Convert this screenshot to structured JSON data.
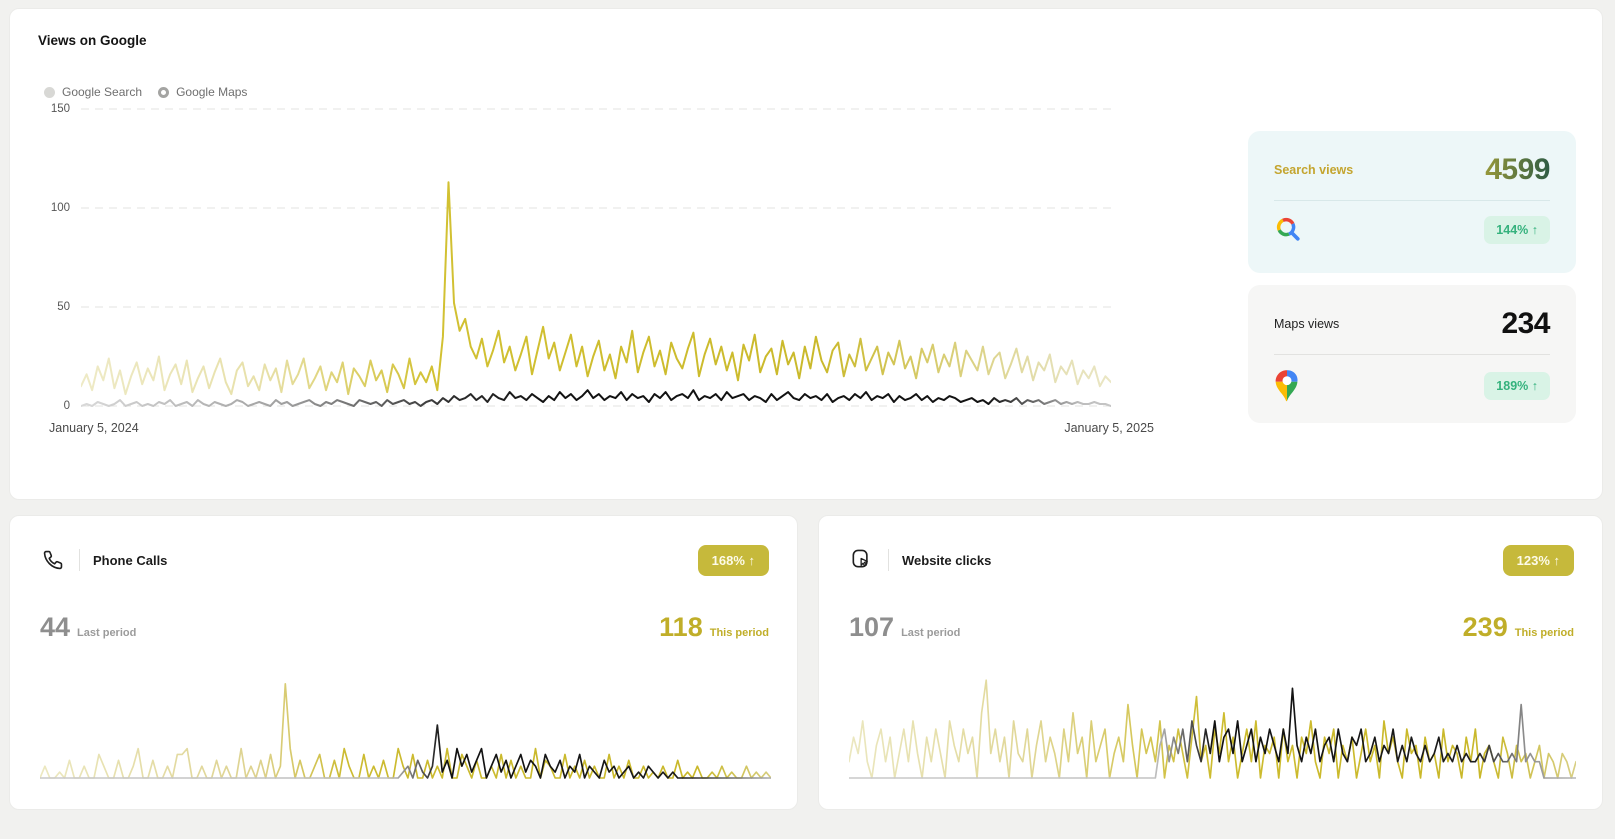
{
  "views": {
    "title": "Views on Google",
    "legend": [
      {
        "label": "Google Search",
        "marker": "filled"
      },
      {
        "label": "Google Maps",
        "marker": "ring"
      }
    ],
    "y_ticks": [
      150,
      100,
      50,
      0
    ],
    "x_start_label": "January 5, 2024",
    "x_end_label": "January 5, 2025"
  },
  "summary": {
    "search": {
      "label": "Search views",
      "value": "4599",
      "change": "144% ↑"
    },
    "maps": {
      "label": "Maps views",
      "value": "234",
      "change": "189% ↑"
    }
  },
  "cards": {
    "phone": {
      "title": "Phone Calls",
      "change": "168% ↑",
      "last_value": "44",
      "last_label": "Last period",
      "this_value": "118",
      "this_label": "This period"
    },
    "clicks": {
      "title": "Website clicks",
      "change": "123% ↑",
      "last_value": "107",
      "last_label": "Last period",
      "this_value": "239",
      "this_label": "This period"
    }
  },
  "colors": {
    "accent_olive": "#c6b93b",
    "accent_olive_text": "#c0ae29",
    "line_yellow": "#cab92b",
    "line_dark": "#121212",
    "green_badge_text": "#35b27d",
    "green_badge_bg": "#d9f3e6",
    "search_tile_bg": "#edf7f8",
    "maps_tile_bg": "#f6f6f5",
    "search_value_gradient": [
      "#97983b",
      "#2e5c44"
    ],
    "google_red": "#EA4335",
    "google_blue": "#4285F4",
    "google_yellow": "#FBBC05",
    "google_green": "#34A853"
  },
  "chart_data": [
    {
      "id": "views-on-google",
      "type": "line",
      "title": "Views on Google",
      "x_range": [
        "January 5, 2024",
        "January 5, 2025"
      ],
      "ylim": [
        0,
        150
      ],
      "y_ticks": [
        150,
        100,
        50,
        0
      ],
      "grid": "dashed-horizontal",
      "legend_position": "top-left",
      "legend": [
        "Google Search",
        "Google Maps"
      ],
      "note": "daily values; line fades pale at period edges, saturated mid-right; Search peak ~113 in late spring",
      "series": [
        {
          "name": "Google Search",
          "values": [
            10,
            16,
            8,
            20,
            13,
            24,
            9,
            18,
            6,
            15,
            22,
            11,
            19,
            13,
            25,
            8,
            16,
            21,
            11,
            23,
            7,
            14,
            20,
            9,
            17,
            24,
            12,
            6,
            18,
            22,
            10,
            15,
            8,
            21,
            13,
            19,
            7,
            23,
            11,
            16,
            24,
            9,
            14,
            20,
            8,
            17,
            12,
            22,
            6,
            19,
            15,
            10,
            23,
            13,
            18,
            7,
            21,
            16,
            9,
            24,
            11,
            17,
            12,
            20,
            8,
            35,
            113,
            52,
            38,
            44,
            30,
            24,
            34,
            20,
            28,
            38,
            22,
            30,
            18,
            26,
            35,
            16,
            28,
            40,
            24,
            32,
            18,
            27,
            36,
            20,
            30,
            15,
            25,
            33,
            18,
            26,
            14,
            30,
            22,
            38,
            17,
            27,
            35,
            20,
            28,
            16,
            32,
            24,
            19,
            29,
            37,
            15,
            26,
            34,
            21,
            30,
            18,
            27,
            13,
            31,
            23,
            36,
            17,
            25,
            29,
            16,
            33,
            21,
            27,
            14,
            30,
            19,
            35,
            23,
            17,
            28,
            32,
            15,
            26,
            20,
            34,
            18,
            24,
            30,
            16,
            27,
            21,
            33,
            19,
            25,
            14,
            29,
            22,
            31,
            17,
            26,
            20,
            32,
            15,
            28,
            23,
            18,
            30,
            16,
            24,
            27,
            14,
            21,
            29,
            17,
            25,
            13,
            22,
            18,
            26,
            12,
            20,
            16,
            23,
            11,
            18,
            14,
            20,
            10,
            15,
            12
          ]
        },
        {
          "name": "Google Maps",
          "values": [
            0,
            1,
            0,
            2,
            1,
            0,
            1,
            3,
            0,
            1,
            2,
            0,
            1,
            0,
            2,
            1,
            3,
            0,
            1,
            2,
            0,
            3,
            1,
            0,
            2,
            1,
            0,
            1,
            3,
            2,
            0,
            1,
            2,
            1,
            0,
            3,
            1,
            2,
            0,
            1,
            2,
            3,
            1,
            0,
            2,
            1,
            3,
            2,
            1,
            0,
            3,
            2,
            1,
            2,
            0,
            3,
            1,
            2,
            3,
            1,
            2,
            0,
            2,
            3,
            1,
            4,
            2,
            5,
            3,
            4,
            6,
            3,
            5,
            2,
            6,
            4,
            3,
            7,
            4,
            5,
            3,
            6,
            4,
            2,
            5,
            3,
            7,
            4,
            6,
            3,
            5,
            8,
            4,
            6,
            3,
            5,
            4,
            7,
            3,
            6,
            4,
            5,
            2,
            6,
            4,
            7,
            3,
            5,
            6,
            4,
            8,
            3,
            5,
            4,
            6,
            3,
            7,
            4,
            5,
            6,
            3,
            5,
            4,
            2,
            6,
            3,
            5,
            7,
            4,
            3,
            6,
            4,
            5,
            3,
            6,
            2,
            4,
            5,
            3,
            6,
            4,
            7,
            3,
            5,
            4,
            6,
            2,
            5,
            3,
            4,
            6,
            3,
            5,
            2,
            4,
            3,
            5,
            4,
            2,
            3,
            4,
            2,
            3,
            1,
            4,
            2,
            3,
            2,
            4,
            1,
            3,
            2,
            3,
            1,
            2,
            3,
            1,
            2,
            1,
            2,
            1,
            1,
            2,
            1,
            1,
            0
          ]
        }
      ]
    },
    {
      "id": "phone-calls",
      "type": "line",
      "title": "Phone Calls",
      "last_period_total": 44,
      "this_period_total": 118,
      "change_pct": "168%",
      "ylim": [
        0,
        18
      ],
      "grid": "none",
      "series": [
        {
          "name": "calls (yellow, last→this period)",
          "values": [
            0,
            2,
            0,
            0,
            1,
            0,
            3,
            0,
            0,
            2,
            0,
            0,
            4,
            2,
            0,
            0,
            3,
            0,
            0,
            2,
            5,
            0,
            0,
            3,
            0,
            0,
            2,
            0,
            4,
            4,
            5,
            0,
            0,
            2,
            0,
            0,
            3,
            0,
            2,
            0,
            0,
            5,
            0,
            2,
            0,
            3,
            0,
            4,
            0,
            2,
            16,
            5,
            0,
            3,
            0,
            0,
            2,
            4,
            0,
            0,
            3,
            0,
            5,
            2,
            0,
            0,
            4,
            0,
            2,
            0,
            3,
            0,
            0,
            5,
            2,
            0,
            4,
            0,
            0,
            3,
            0,
            2,
            0,
            5,
            0,
            0,
            4,
            2,
            0,
            3,
            0,
            0,
            2,
            0,
            4,
            0,
            3,
            0,
            2,
            0,
            0,
            5,
            0,
            3,
            2,
            0,
            0,
            4,
            0,
            2,
            0,
            3,
            0,
            2,
            0,
            0,
            4,
            0,
            2,
            0,
            3,
            0,
            0,
            2,
            0,
            1,
            0,
            2,
            0,
            0,
            3,
            0,
            1,
            0,
            2,
            0,
            0,
            1,
            0,
            2,
            0,
            1,
            0,
            0,
            2,
            0,
            1,
            0,
            1,
            0
          ]
        },
        {
          "name": "calls highlight (dark, this period)",
          "values": [
            0,
            0,
            0,
            0,
            0,
            0,
            0,
            0,
            0,
            0,
            0,
            0,
            0,
            0,
            0,
            0,
            0,
            0,
            0,
            0,
            0,
            0,
            0,
            0,
            0,
            0,
            0,
            0,
            0,
            0,
            0,
            0,
            0,
            0,
            0,
            0,
            0,
            0,
            0,
            0,
            0,
            0,
            0,
            0,
            0,
            0,
            0,
            0,
            0,
            0,
            0,
            0,
            0,
            0,
            0,
            0,
            0,
            0,
            0,
            0,
            0,
            0,
            0,
            0,
            0,
            0,
            0,
            0,
            0,
            0,
            0,
            0,
            0,
            0,
            1,
            2,
            0,
            3,
            1,
            0,
            2,
            9,
            1,
            3,
            0,
            5,
            2,
            4,
            1,
            3,
            5,
            0,
            2,
            4,
            1,
            3,
            0,
            2,
            4,
            1,
            3,
            2,
            0,
            4,
            2,
            1,
            3,
            0,
            2,
            1,
            4,
            0,
            2,
            1,
            0,
            3,
            1,
            2,
            0,
            1,
            2,
            0,
            1,
            0,
            2,
            1,
            0,
            1,
            0,
            1,
            0,
            0,
            0,
            0,
            0,
            0,
            0,
            0,
            0,
            0,
            0,
            0,
            0,
            0,
            0,
            0,
            0,
            0,
            0,
            0
          ]
        }
      ]
    },
    {
      "id": "website-clicks",
      "type": "line",
      "title": "Website clicks",
      "last_period_total": 107,
      "this_period_total": 239,
      "change_pct": "123%",
      "ylim": [
        0,
        13
      ],
      "grid": "none",
      "series": [
        {
          "name": "clicks (yellow, last→this period)",
          "values": [
            2,
            5,
            3,
            7,
            2,
            0,
            4,
            6,
            2,
            5,
            0,
            3,
            6,
            2,
            7,
            3,
            0,
            5,
            2,
            6,
            3,
            0,
            7,
            4,
            2,
            6,
            3,
            5,
            0,
            8,
            12,
            3,
            6,
            2,
            5,
            0,
            7,
            3,
            2,
            6,
            0,
            4,
            7,
            2,
            5,
            3,
            0,
            6,
            2,
            8,
            3,
            5,
            0,
            7,
            2,
            4,
            6,
            0,
            3,
            5,
            2,
            9,
            4,
            0,
            6,
            3,
            5,
            2,
            7,
            0,
            4,
            2,
            6,
            3,
            0,
            5,
            10,
            2,
            4,
            0,
            6,
            3,
            8,
            2,
            5,
            0,
            3,
            6,
            2,
            7,
            0,
            4,
            3,
            5,
            0,
            6,
            2,
            4,
            0,
            5,
            3,
            7,
            2,
            0,
            5,
            3,
            6,
            0,
            4,
            2,
            5,
            0,
            3,
            6,
            2,
            4,
            0,
            7,
            3,
            5,
            2,
            0,
            6,
            3,
            4,
            0,
            5,
            2,
            3,
            0,
            6,
            2,
            4,
            3,
            0,
            5,
            2,
            6,
            0,
            3,
            4,
            2,
            0,
            5,
            3,
            0,
            4,
            2,
            3,
            0,
            2,
            4,
            0,
            3,
            2,
            0,
            3,
            2,
            0,
            2
          ]
        },
        {
          "name": "clicks highlight (dark, this period)",
          "values": [
            0,
            0,
            0,
            0,
            0,
            0,
            0,
            0,
            0,
            0,
            0,
            0,
            0,
            0,
            0,
            0,
            0,
            0,
            0,
            0,
            0,
            0,
            0,
            0,
            0,
            0,
            0,
            0,
            0,
            0,
            0,
            0,
            0,
            0,
            0,
            0,
            0,
            0,
            0,
            0,
            0,
            0,
            0,
            0,
            0,
            0,
            0,
            0,
            0,
            0,
            0,
            0,
            0,
            0,
            0,
            0,
            0,
            0,
            0,
            0,
            0,
            0,
            0,
            0,
            0,
            0,
            0,
            0,
            4,
            6,
            2,
            5,
            3,
            6,
            2,
            7,
            4,
            2,
            6,
            3,
            7,
            2,
            5,
            6,
            3,
            7,
            2,
            4,
            6,
            2,
            5,
            3,
            6,
            4,
            2,
            6,
            3,
            11,
            4,
            2,
            5,
            3,
            6,
            2,
            4,
            5,
            2,
            6,
            3,
            2,
            5,
            4,
            6,
            2,
            3,
            5,
            2,
            4,
            3,
            6,
            2,
            4,
            2,
            5,
            3,
            2,
            4,
            2,
            3,
            5,
            2,
            3,
            2,
            4,
            2,
            3,
            2,
            2,
            3,
            2,
            4,
            2,
            3,
            2,
            2,
            3,
            2,
            9,
            2,
            3,
            2,
            2,
            0,
            0,
            0,
            0,
            0,
            0,
            0,
            0
          ]
        }
      ]
    }
  ]
}
